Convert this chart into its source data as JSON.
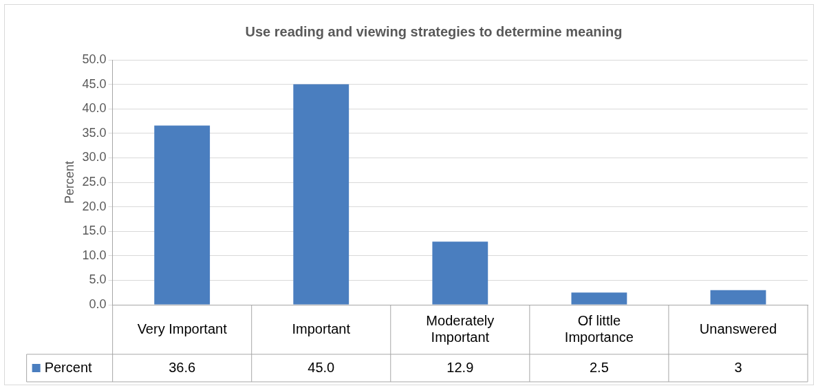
{
  "chart_data": {
    "type": "bar",
    "title": "Use reading and viewing strategies to determine meaning",
    "ylabel": "Percent",
    "categories": [
      "Very Important",
      "Important",
      "Moderately Important",
      "Of little Importance",
      "Unanswered"
    ],
    "series": [
      {
        "name": "Percent",
        "color": "#4a7ebf",
        "values": [
          36.6,
          45.0,
          12.9,
          2.5,
          3
        ],
        "value_labels": [
          "36.6",
          "45.0",
          "12.9",
          "2.5",
          "3"
        ]
      }
    ],
    "ylim": [
      0,
      50
    ],
    "yticks": [
      {
        "value": 0,
        "label": "0.0"
      },
      {
        "value": 5,
        "label": "5.0"
      },
      {
        "value": 10,
        "label": "10.0"
      },
      {
        "value": 15,
        "label": "15.0"
      },
      {
        "value": 20,
        "label": "20.0"
      },
      {
        "value": 25,
        "label": "25.0"
      },
      {
        "value": 30,
        "label": "30.0"
      },
      {
        "value": 35,
        "label": "35.0"
      },
      {
        "value": 40,
        "label": "40.0"
      },
      {
        "value": 45,
        "label": "45.0"
      },
      {
        "value": 50,
        "label": "50.0"
      }
    ],
    "grid": "y",
    "legend": "bottom left"
  }
}
